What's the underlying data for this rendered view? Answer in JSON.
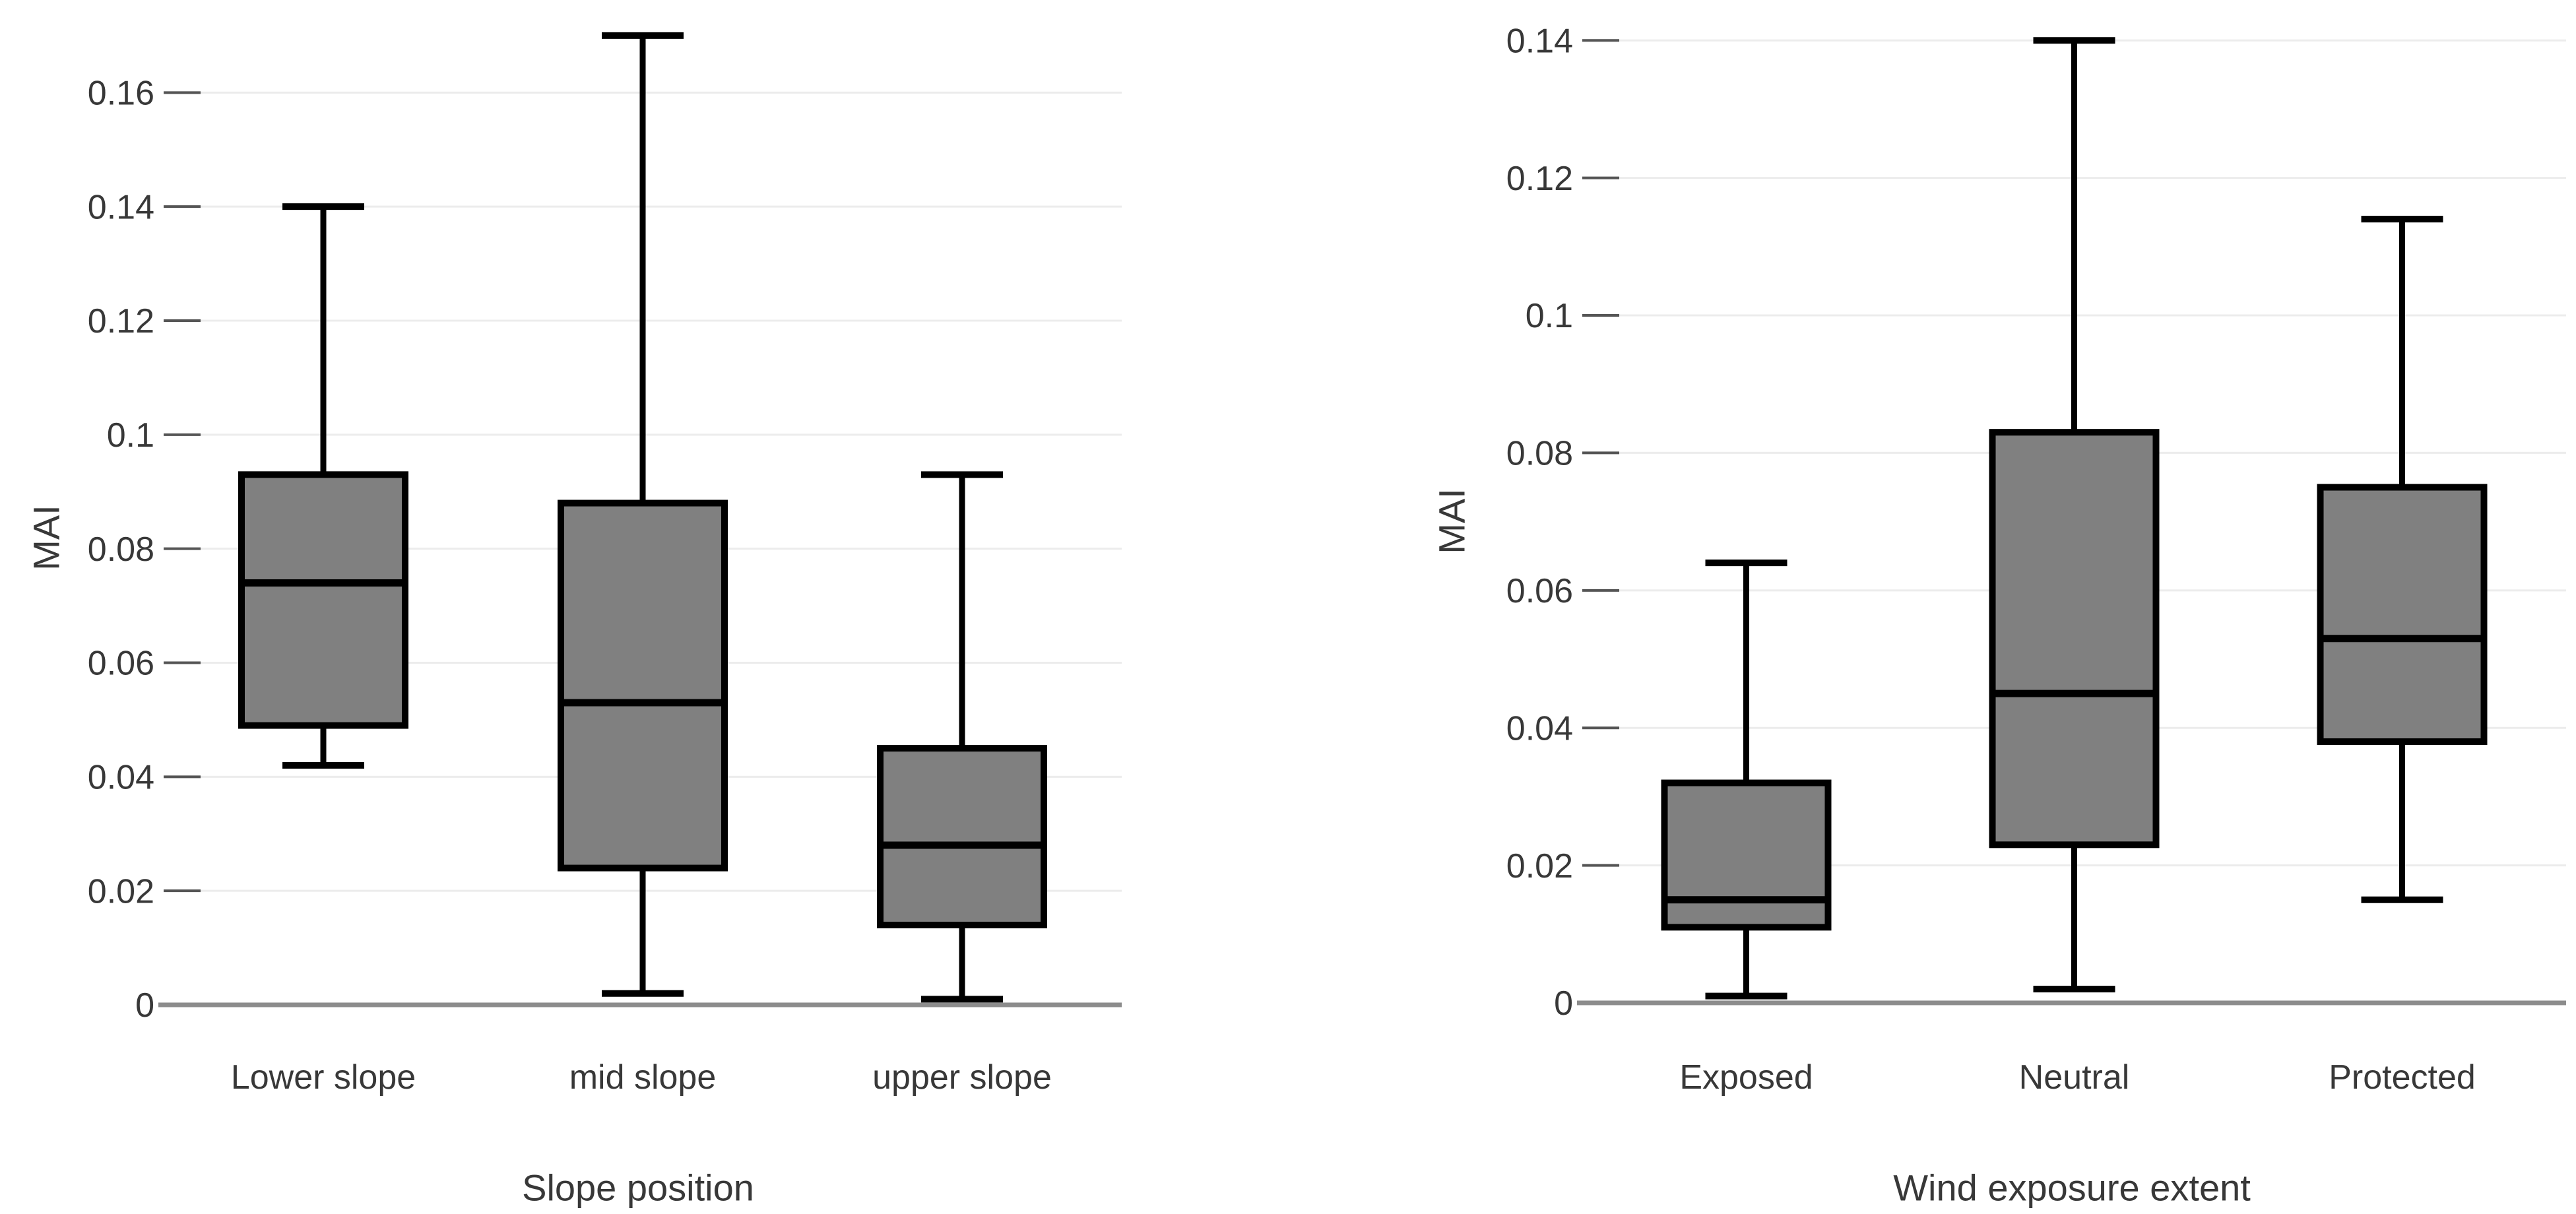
{
  "figure": {
    "background": "#ffffff",
    "box_fill": "#808080",
    "box_stroke": "#000000",
    "gridline_color": "#ececec",
    "axis_line_color": "#8c8c8c",
    "tick_mark_color": "#555555",
    "text_color": "#383838"
  },
  "chart_data": [
    {
      "type": "box",
      "title": "",
      "xlabel": "Slope position",
      "ylabel": "MAI",
      "categories": [
        "Lower slope",
        "mid slope",
        "upper slope"
      ],
      "series": [
        {
          "name": "Lower slope",
          "min": 0.042,
          "q1": 0.049,
          "median": 0.074,
          "q3": 0.093,
          "max": 0.14
        },
        {
          "name": "mid slope",
          "min": 0.002,
          "q1": 0.024,
          "median": 0.053,
          "q3": 0.088,
          "max": 0.17
        },
        {
          "name": "upper slope",
          "min": 0.001,
          "q1": 0.014,
          "median": 0.028,
          "q3": 0.045,
          "max": 0.093
        }
      ],
      "y_ticks": {
        "values": [
          0,
          0.02,
          0.04,
          0.06,
          0.08,
          0.1,
          0.12,
          0.14,
          0.16
        ],
        "labels": [
          "0",
          "0.02",
          "0.04",
          "0.06",
          "0.08",
          "0.1",
          "0.12",
          "0.14",
          "0.16"
        ]
      },
      "ylim": [
        0,
        0.173
      ],
      "grid": true,
      "legend": false
    },
    {
      "type": "box",
      "title": "",
      "xlabel": "Wind exposure extent",
      "ylabel": "MAI",
      "categories": [
        "Exposed",
        "Neutral",
        "Protected"
      ],
      "series": [
        {
          "name": "Exposed",
          "min": 0.001,
          "q1": 0.011,
          "median": 0.015,
          "q3": 0.032,
          "max": 0.064
        },
        {
          "name": "Neutral",
          "min": 0.002,
          "q1": 0.023,
          "median": 0.045,
          "q3": 0.083,
          "max": 0.14
        },
        {
          "name": "Protected",
          "min": 0.015,
          "q1": 0.038,
          "median": 0.053,
          "q3": 0.075,
          "max": 0.114
        }
      ],
      "y_ticks": {
        "values": [
          0,
          0.02,
          0.04,
          0.06,
          0.08,
          0.1,
          0.12,
          0.14
        ],
        "labels": [
          "0",
          "0.02",
          "0.04",
          "0.06",
          "0.08",
          "0.1",
          "0.12",
          "0.14"
        ]
      },
      "ylim": [
        0,
        0.143
      ],
      "grid": true,
      "legend": false
    }
  ]
}
